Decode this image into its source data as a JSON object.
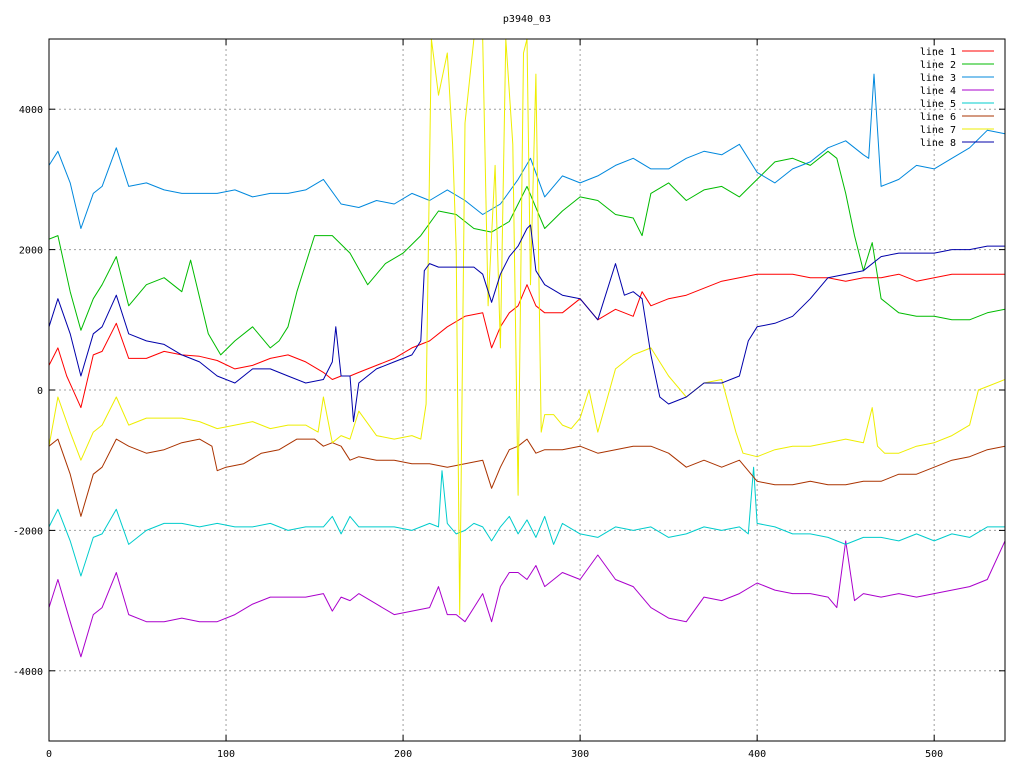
{
  "chart_data": {
    "type": "line",
    "title": "p3940_03",
    "xlabel": "",
    "ylabel": "",
    "xlim": [
      0,
      540
    ],
    "ylim": [
      -5000,
      5000
    ],
    "xticks": [
      0,
      100,
      200,
      300,
      400,
      500
    ],
    "yticks": [
      -4000,
      -2000,
      0,
      2000,
      4000
    ],
    "grid": true,
    "legend_position": "top-right",
    "series": [
      {
        "name": "line 1",
        "color": "#ff0000",
        "x": [
          0,
          5,
          10,
          18,
          25,
          30,
          38,
          45,
          55,
          65,
          75,
          85,
          95,
          105,
          115,
          125,
          135,
          145,
          155,
          160,
          165,
          170,
          175,
          185,
          195,
          205,
          215,
          225,
          235,
          245,
          250,
          255,
          260,
          265,
          270,
          275,
          280,
          290,
          300,
          310,
          320,
          330,
          335,
          340,
          350,
          360,
          370,
          380,
          390,
          400,
          410,
          420,
          430,
          440,
          450,
          460,
          470,
          480,
          490,
          500,
          510,
          520,
          530,
          540
        ],
        "y": [
          350,
          600,
          200,
          -250,
          500,
          550,
          950,
          450,
          450,
          550,
          500,
          480,
          420,
          300,
          350,
          450,
          500,
          400,
          250,
          150,
          200,
          200,
          250,
          350,
          450,
          600,
          700,
          900,
          1050,
          1100,
          600,
          900,
          1100,
          1200,
          1500,
          1200,
          1100,
          1100,
          1300,
          1000,
          1150,
          1050,
          1400,
          1200,
          1300,
          1350,
          1450,
          1550,
          1600,
          1650,
          1650,
          1650,
          1600,
          1600,
          1550,
          1600,
          1600,
          1650,
          1550,
          1600,
          1650,
          1650,
          1650,
          1650
        ]
      },
      {
        "name": "line 2",
        "color": "#00bb00",
        "x": [
          0,
          5,
          12,
          18,
          25,
          30,
          38,
          45,
          55,
          65,
          75,
          80,
          90,
          97,
          105,
          115,
          125,
          130,
          135,
          140,
          150,
          160,
          170,
          180,
          190,
          200,
          210,
          220,
          230,
          240,
          250,
          260,
          270,
          280,
          290,
          300,
          310,
          320,
          330,
          335,
          340,
          350,
          360,
          370,
          380,
          390,
          400,
          410,
          420,
          430,
          440,
          445,
          450,
          455,
          460,
          465,
          470,
          480,
          490,
          500,
          510,
          520,
          530,
          540
        ],
        "y": [
          2150,
          2200,
          1400,
          850,
          1300,
          1500,
          1900,
          1200,
          1500,
          1600,
          1400,
          1850,
          800,
          500,
          700,
          900,
          600,
          700,
          900,
          1400,
          2200,
          2200,
          1950,
          1500,
          1800,
          1950,
          2200,
          2550,
          2500,
          2300,
          2250,
          2400,
          2900,
          2300,
          2550,
          2750,
          2700,
          2500,
          2450,
          2200,
          2800,
          2950,
          2700,
          2850,
          2900,
          2750,
          3000,
          3250,
          3300,
          3200,
          3400,
          3300,
          2800,
          2200,
          1700,
          2100,
          1300,
          1100,
          1050,
          1050,
          1000,
          1000,
          1100,
          1150
        ]
      },
      {
        "name": "line 3",
        "color": "#0088dd",
        "x": [
          0,
          5,
          12,
          18,
          25,
          30,
          38,
          45,
          55,
          65,
          75,
          85,
          95,
          105,
          115,
          125,
          135,
          145,
          155,
          165,
          175,
          185,
          195,
          205,
          215,
          225,
          235,
          245,
          255,
          265,
          272,
          280,
          290,
          300,
          310,
          320,
          330,
          340,
          350,
          360,
          370,
          380,
          390,
          400,
          410,
          420,
          430,
          440,
          450,
          460,
          463,
          466,
          470,
          480,
          490,
          500,
          510,
          520,
          530,
          540
        ],
        "y": [
          3200,
          3400,
          2950,
          2300,
          2800,
          2900,
          3450,
          2900,
          2950,
          2850,
          2800,
          2800,
          2800,
          2850,
          2750,
          2800,
          2800,
          2850,
          3000,
          2650,
          2600,
          2700,
          2650,
          2800,
          2700,
          2850,
          2700,
          2500,
          2650,
          3000,
          3300,
          2750,
          3050,
          2950,
          3050,
          3200,
          3300,
          3150,
          3150,
          3300,
          3400,
          3350,
          3500,
          3100,
          2950,
          3150,
          3250,
          3450,
          3550,
          3350,
          3300,
          4500,
          2900,
          3000,
          3200,
          3150,
          3300,
          3450,
          3700,
          3650
        ]
      },
      {
        "name": "line 4",
        "color": "#aa00cc",
        "x": [
          0,
          5,
          12,
          18,
          25,
          30,
          38,
          45,
          55,
          65,
          75,
          85,
          95,
          105,
          115,
          125,
          135,
          145,
          155,
          160,
          165,
          170,
          175,
          185,
          195,
          205,
          215,
          220,
          225,
          230,
          235,
          240,
          245,
          250,
          255,
          260,
          265,
          270,
          275,
          280,
          290,
          300,
          310,
          320,
          330,
          340,
          350,
          360,
          370,
          380,
          390,
          400,
          410,
          420,
          430,
          440,
          445,
          450,
          455,
          460,
          470,
          480,
          490,
          500,
          510,
          520,
          530,
          540
        ],
        "y": [
          -3100,
          -2700,
          -3300,
          -3800,
          -3200,
          -3100,
          -2600,
          -3200,
          -3300,
          -3300,
          -3250,
          -3300,
          -3300,
          -3200,
          -3050,
          -2950,
          -2950,
          -2950,
          -2900,
          -3150,
          -2950,
          -3000,
          -2900,
          -3050,
          -3200,
          -3150,
          -3100,
          -2800,
          -3200,
          -3200,
          -3300,
          -3100,
          -2900,
          -3300,
          -2800,
          -2600,
          -2600,
          -2700,
          -2500,
          -2800,
          -2600,
          -2700,
          -2350,
          -2700,
          -2800,
          -3100,
          -3250,
          -3300,
          -2950,
          -3000,
          -2900,
          -2750,
          -2850,
          -2900,
          -2900,
          -2950,
          -3100,
          -2150,
          -3000,
          -2900,
          -2950,
          -2900,
          -2950,
          -2900,
          -2850,
          -2800,
          -2700,
          -2150
        ]
      },
      {
        "name": "line 5",
        "color": "#00cccc",
        "x": [
          0,
          5,
          12,
          18,
          25,
          30,
          38,
          45,
          55,
          65,
          75,
          85,
          95,
          105,
          115,
          125,
          135,
          145,
          155,
          160,
          165,
          170,
          175,
          185,
          195,
          205,
          215,
          220,
          222,
          225,
          230,
          235,
          240,
          245,
          250,
          255,
          260,
          265,
          270,
          275,
          280,
          285,
          290,
          300,
          310,
          320,
          330,
          340,
          350,
          360,
          370,
          380,
          390,
          395,
          398,
          400,
          410,
          420,
          430,
          440,
          450,
          460,
          470,
          480,
          490,
          500,
          510,
          520,
          530,
          540
        ],
        "y": [
          -1950,
          -1700,
          -2150,
          -2650,
          -2100,
          -2050,
          -1700,
          -2200,
          -2000,
          -1900,
          -1900,
          -1950,
          -1900,
          -1950,
          -1950,
          -1900,
          -2000,
          -1950,
          -1950,
          -1800,
          -2050,
          -1800,
          -1950,
          -1950,
          -1950,
          -2000,
          -1900,
          -1950,
          -1150,
          -1900,
          -2050,
          -2000,
          -1900,
          -1950,
          -2150,
          -1950,
          -1800,
          -2050,
          -1850,
          -2100,
          -1800,
          -2200,
          -1900,
          -2050,
          -2100,
          -1950,
          -2000,
          -1950,
          -2100,
          -2050,
          -1950,
          -2000,
          -1950,
          -2050,
          -1100,
          -1900,
          -1950,
          -2050,
          -2050,
          -2100,
          -2200,
          -2100,
          -2100,
          -2150,
          -2050,
          -2150,
          -2050,
          -2100,
          -1950,
          -1950
        ]
      },
      {
        "name": "line 6",
        "color": "#aa3300",
        "x": [
          0,
          5,
          12,
          18,
          25,
          30,
          38,
          45,
          55,
          65,
          75,
          85,
          92,
          95,
          100,
          110,
          120,
          130,
          140,
          150,
          155,
          160,
          165,
          170,
          175,
          185,
          195,
          205,
          215,
          225,
          235,
          245,
          250,
          255,
          260,
          265,
          270,
          275,
          280,
          290,
          300,
          310,
          320,
          330,
          340,
          350,
          360,
          370,
          380,
          390,
          400,
          410,
          420,
          430,
          440,
          450,
          460,
          470,
          480,
          490,
          500,
          510,
          520,
          530,
          540
        ],
        "y": [
          -800,
          -700,
          -1200,
          -1800,
          -1200,
          -1100,
          -700,
          -800,
          -900,
          -850,
          -750,
          -700,
          -800,
          -1150,
          -1100,
          -1050,
          -900,
          -850,
          -700,
          -700,
          -800,
          -750,
          -800,
          -1000,
          -950,
          -1000,
          -1000,
          -1050,
          -1050,
          -1100,
          -1050,
          -1000,
          -1400,
          -1100,
          -850,
          -800,
          -700,
          -900,
          -850,
          -850,
          -800,
          -900,
          -850,
          -800,
          -800,
          -900,
          -1100,
          -1000,
          -1100,
          -1000,
          -1300,
          -1350,
          -1350,
          -1300,
          -1350,
          -1350,
          -1300,
          -1300,
          -1200,
          -1200,
          -1100,
          -1000,
          -950,
          -850,
          -800
        ]
      },
      {
        "name": "line 7",
        "color": "#eeee00",
        "x": [
          0,
          5,
          12,
          18,
          25,
          30,
          38,
          45,
          55,
          65,
          75,
          85,
          95,
          105,
          115,
          125,
          135,
          145,
          152,
          155,
          160,
          165,
          170,
          175,
          185,
          195,
          205,
          210,
          213,
          216,
          220,
          225,
          228,
          230,
          232,
          235,
          240,
          245,
          248,
          252,
          255,
          258,
          262,
          265,
          268,
          270,
          272,
          275,
          278,
          280,
          285,
          290,
          295,
          300,
          305,
          310,
          320,
          330,
          340,
          350,
          360,
          370,
          380,
          388,
          392,
          400,
          410,
          420,
          430,
          440,
          450,
          460,
          465,
          468,
          472,
          480,
          490,
          500,
          510,
          520,
          525,
          530,
          540
        ],
        "y": [
          -800,
          -100,
          -600,
          -1000,
          -600,
          -500,
          -100,
          -500,
          -400,
          -400,
          -400,
          -450,
          -550,
          -500,
          -450,
          -550,
          -500,
          -500,
          -600,
          -100,
          -750,
          -650,
          -700,
          -300,
          -650,
          -700,
          -650,
          -700,
          -200,
          5000,
          4200,
          4800,
          3500,
          2000,
          -3200,
          3800,
          5000,
          5000,
          1200,
          3200,
          600,
          5000,
          3500,
          -1500,
          4800,
          5000,
          1500,
          4500,
          -600,
          -350,
          -350,
          -500,
          -550,
          -400,
          0,
          -600,
          300,
          500,
          600,
          200,
          -100,
          100,
          150,
          -600,
          -900,
          -950,
          -850,
          -800,
          -800,
          -750,
          -700,
          -750,
          -250,
          -800,
          -900,
          -900,
          -800,
          -750,
          -650,
          -500,
          0,
          50,
          150
        ]
      },
      {
        "name": "line 8",
        "color": "#0000aa",
        "x": [
          0,
          5,
          12,
          18,
          25,
          30,
          38,
          45,
          55,
          65,
          75,
          85,
          95,
          105,
          115,
          125,
          135,
          145,
          155,
          160,
          162,
          165,
          170,
          172,
          175,
          185,
          195,
          205,
          210,
          212,
          215,
          220,
          230,
          240,
          245,
          250,
          255,
          260,
          265,
          270,
          272,
          275,
          280,
          290,
          300,
          310,
          320,
          325,
          330,
          335,
          340,
          345,
          350,
          360,
          370,
          380,
          390,
          395,
          400,
          410,
          420,
          430,
          440,
          450,
          460,
          470,
          480,
          490,
          500,
          510,
          520,
          530,
          540
        ],
        "y": [
          900,
          1300,
          800,
          200,
          800,
          900,
          1350,
          800,
          700,
          650,
          500,
          400,
          200,
          100,
          300,
          300,
          200,
          100,
          150,
          400,
          900,
          200,
          200,
          -450,
          100,
          300,
          400,
          500,
          700,
          1700,
          1800,
          1750,
          1750,
          1750,
          1650,
          1250,
          1650,
          1900,
          2050,
          2300,
          2350,
          1700,
          1500,
          1350,
          1300,
          1000,
          1800,
          1350,
          1400,
          1300,
          500,
          -100,
          -200,
          -100,
          100,
          100,
          200,
          700,
          900,
          950,
          1050,
          1300,
          1600,
          1650,
          1700,
          1900,
          1950,
          1950,
          1950,
          2000,
          2000,
          2050,
          2050
        ]
      }
    ]
  }
}
